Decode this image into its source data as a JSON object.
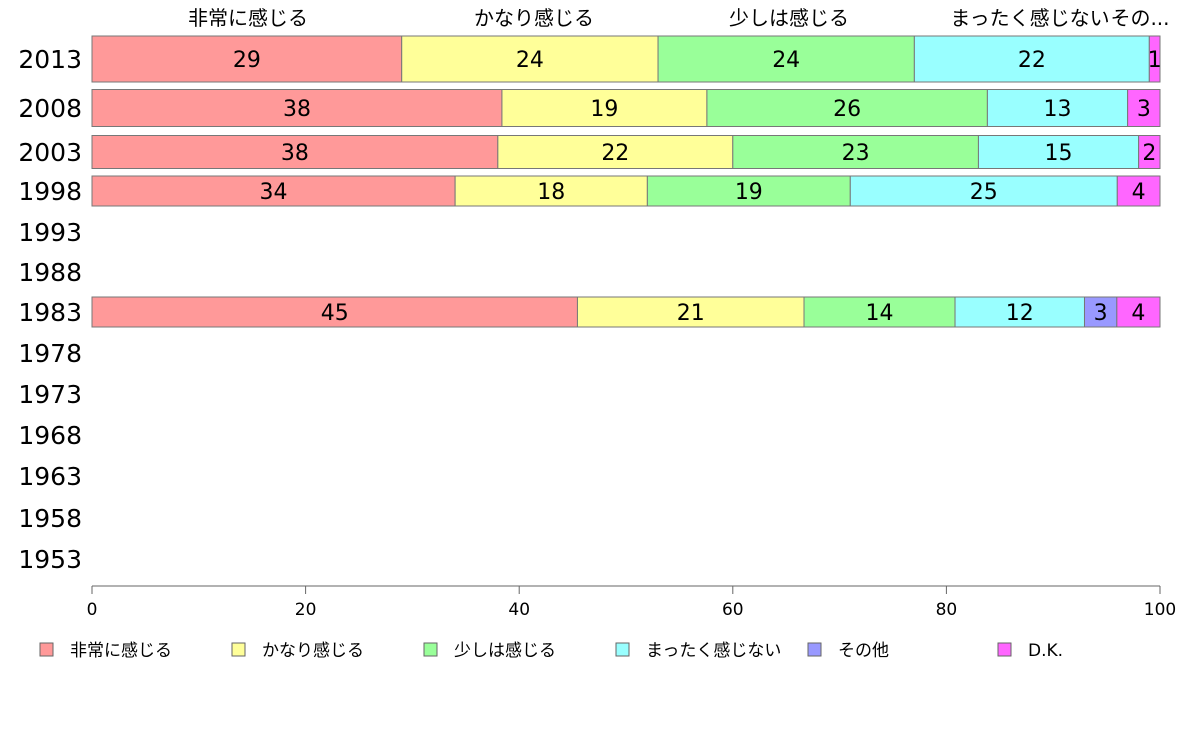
{
  "chart_data": {
    "type": "bar",
    "orientation": "horizontal",
    "stacked": true,
    "top_labels": [
      "非常に感じる",
      "かなり感じる",
      "少しは感じる",
      "まったく感じない",
      "その..."
    ],
    "categories": [
      "2013",
      "2008",
      "2003",
      "1998",
      "1993",
      "1988",
      "1983",
      "1978",
      "1973",
      "1968",
      "1963",
      "1958",
      "1953"
    ],
    "series": [
      {
        "name": "非常に感じる",
        "color": "#FF9999",
        "values": [
          29,
          38,
          38,
          34,
          null,
          null,
          45,
          null,
          null,
          null,
          null,
          null,
          null
        ]
      },
      {
        "name": "かなり感じる",
        "color": "#FFFF99",
        "values": [
          24,
          19,
          22,
          18,
          null,
          null,
          21,
          null,
          null,
          null,
          null,
          null,
          null
        ]
      },
      {
        "name": "少しは感じる",
        "color": "#99FF99",
        "values": [
          24,
          26,
          23,
          19,
          null,
          null,
          14,
          null,
          null,
          null,
          null,
          null,
          null
        ]
      },
      {
        "name": "まったく感じない",
        "color": "#99FFFF",
        "values": [
          22,
          13,
          15,
          25,
          null,
          null,
          12,
          null,
          null,
          null,
          null,
          null,
          null
        ]
      },
      {
        "name": "その他",
        "color": "#9999FF",
        "values": [
          0,
          0,
          0,
          0,
          null,
          null,
          3,
          null,
          null,
          null,
          null,
          null,
          null
        ]
      },
      {
        "name": "D.K.",
        "color": "#FF66FF",
        "values": [
          1,
          3,
          2,
          4,
          null,
          null,
          4,
          null,
          null,
          null,
          null,
          null,
          null
        ]
      }
    ],
    "x_ticks": [
      0,
      20,
      40,
      60,
      80,
      100
    ],
    "xlim": [
      0,
      100
    ],
    "legend_position": "bottom"
  }
}
